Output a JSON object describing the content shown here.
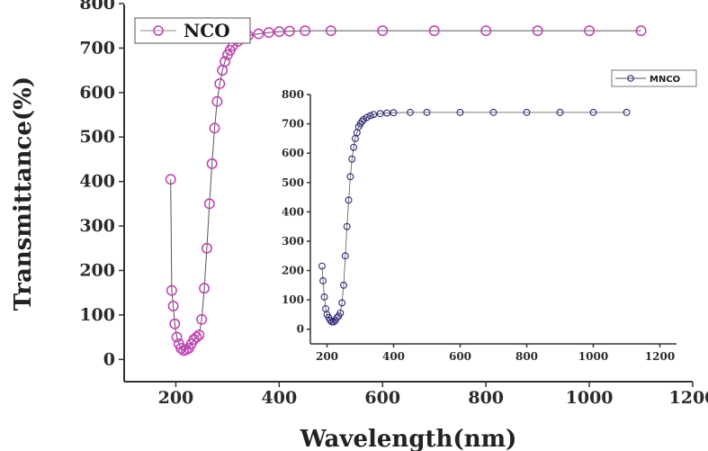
{
  "chart_data": [
    {
      "type": "scatter",
      "title": "",
      "xlabel": "Wavelength(nm)",
      "ylabel": "Transmittance(%)",
      "xlim": [
        100,
        1200
      ],
      "ylim": [
        -50,
        800
      ],
      "xticks": [
        200,
        400,
        600,
        800,
        1000,
        1200
      ],
      "yticks": [
        0,
        100,
        200,
        300,
        400,
        500,
        600,
        700,
        800
      ],
      "grid": false,
      "legend_position": "top-left",
      "series": [
        {
          "name": "NCO",
          "color": "#c13fb3",
          "marker": "open-circle",
          "x": [
            190,
            192,
            195,
            198,
            202,
            206,
            210,
            215,
            220,
            225,
            230,
            235,
            240,
            245,
            250,
            255,
            260,
            265,
            270,
            275,
            280,
            285,
            290,
            295,
            300,
            305,
            310,
            320,
            330,
            340,
            360,
            380,
            400,
            420,
            450,
            500,
            600,
            700,
            800,
            900,
            1000,
            1100
          ],
          "y": [
            405,
            155,
            120,
            80,
            50,
            35,
            25,
            20,
            22,
            25,
            35,
            45,
            50,
            55,
            90,
            160,
            250,
            350,
            440,
            520,
            580,
            620,
            650,
            670,
            685,
            695,
            705,
            715,
            722,
            728,
            732,
            735,
            737,
            738,
            739,
            739,
            739,
            739,
            739,
            739,
            739,
            739
          ]
        }
      ]
    },
    {
      "type": "scatter",
      "title": "",
      "xlabel": "",
      "ylabel": "",
      "xlim": [
        150,
        1250
      ],
      "ylim": [
        -50,
        800
      ],
      "xticks": [
        200,
        400,
        600,
        800,
        1000,
        1200
      ],
      "yticks": [
        0,
        100,
        200,
        300,
        400,
        500,
        600,
        700,
        800
      ],
      "grid": false,
      "legend_position": "top-right",
      "series": [
        {
          "name": "MNCO",
          "color": "#2e2a7a",
          "marker": "open-circle",
          "x": [
            185,
            188,
            192,
            196,
            200,
            205,
            210,
            215,
            220,
            225,
            230,
            235,
            240,
            245,
            250,
            255,
            260,
            265,
            270,
            275,
            280,
            285,
            290,
            295,
            300,
            305,
            310,
            320,
            330,
            340,
            360,
            380,
            400,
            450,
            500,
            600,
            700,
            800,
            900,
            1000,
            1100
          ],
          "y": [
            215,
            165,
            110,
            70,
            50,
            40,
            30,
            25,
            25,
            30,
            40,
            45,
            55,
            90,
            150,
            250,
            350,
            440,
            520,
            580,
            620,
            650,
            670,
            690,
            700,
            708,
            715,
            722,
            728,
            732,
            735,
            737,
            738,
            739,
            739,
            739,
            739,
            739,
            739,
            739,
            739
          ]
        }
      ]
    }
  ]
}
